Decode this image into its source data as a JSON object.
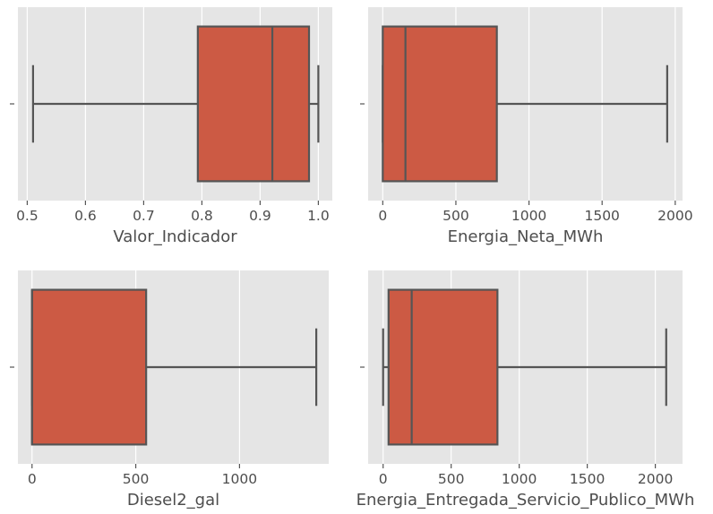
{
  "chart_data": [
    {
      "type": "boxplot",
      "orientation": "horizontal",
      "xlabel": "Valor_Indicador",
      "xlim": [
        0.484,
        1.024
      ],
      "xticks": [
        0.5,
        0.6,
        0.7,
        0.8,
        0.9,
        1.0
      ],
      "xtick_labels": [
        "0.5",
        "0.6",
        "0.7",
        "0.8",
        "0.9",
        "1.0"
      ],
      "ytick_labels": [
        ""
      ],
      "grid": true,
      "box": {
        "whisker_low": 0.51,
        "q1": 0.793,
        "median": 0.921,
        "q3": 0.984,
        "whisker_high": 1.0
      }
    },
    {
      "type": "boxplot",
      "orientation": "horizontal",
      "xlabel": "Energia_Neta_MWh",
      "xlim": [
        -100,
        2050
      ],
      "xticks": [
        0,
        500,
        1000,
        1500,
        2000
      ],
      "xtick_labels": [
        "0",
        "500",
        "1000",
        "1500",
        "2000"
      ],
      "ytick_labels": [
        ""
      ],
      "grid": true,
      "box": {
        "whisker_low": 0,
        "q1": 0,
        "median": 155,
        "q3": 780,
        "whisker_high": 1945
      }
    },
    {
      "type": "boxplot",
      "orientation": "horizontal",
      "xlabel": "Diesel2_gal",
      "xlim": [
        -68,
        1430
      ],
      "xticks": [
        0,
        500,
        1000
      ],
      "xtick_labels": [
        "0",
        "500",
        "1000"
      ],
      "ytick_labels": [
        ""
      ],
      "grid": true,
      "box": {
        "whisker_low": 0,
        "q1": 0,
        "median": 0,
        "q3": 550,
        "whisker_high": 1370
      }
    },
    {
      "type": "boxplot",
      "orientation": "horizontal",
      "xlabel": "Energia_Entregada_Servicio_Publico_MWh",
      "xlim": [
        -110,
        2200
      ],
      "xticks": [
        0,
        500,
        1000,
        1500,
        2000
      ],
      "xtick_labels": [
        "0",
        "500",
        "1000",
        "1500",
        "2000"
      ],
      "ytick_labels": [
        ""
      ],
      "grid": true,
      "box": {
        "whisker_low": 0,
        "q1": 40,
        "median": 210,
        "q3": 840,
        "whisker_high": 2080
      }
    }
  ],
  "colors": {
    "panel_background": "#e5e5e5",
    "grid": "#ffffff",
    "box_fill": "#cc5a44",
    "box_edge": "#555555",
    "tick_text": "#4d4d4d"
  }
}
